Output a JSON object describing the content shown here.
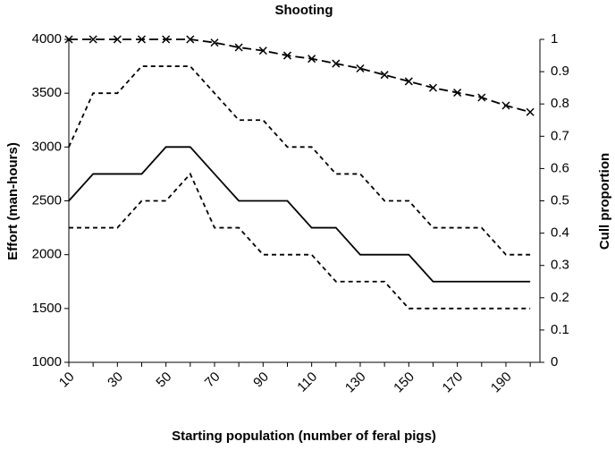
{
  "chart_data": {
    "type": "line",
    "title": "Shooting",
    "xlabel": "Starting population (number of feral pigs)",
    "ylabel": "Effort (man-hours)",
    "y2label": "Cull proportion",
    "categories": [
      "10",
      null,
      "30",
      null,
      "50",
      null,
      "70",
      null,
      "90",
      null,
      "110",
      null,
      "130",
      null,
      "150",
      null,
      "170",
      null,
      "190",
      null
    ],
    "series": [
      {
        "color": "#000000",
        "style": "dashed",
        "values": [
          3000,
          3500,
          3500,
          3750,
          3750,
          3750,
          3500,
          3250,
          3250,
          3000,
          3000,
          2750,
          2750,
          2500,
          2500,
          2250,
          2250,
          2250,
          2000,
          2000
        ]
      },
      {
        "color": "#000000",
        "style": "solid",
        "values": [
          2500,
          2750,
          2750,
          2750,
          3000,
          3000,
          2750,
          2500,
          2500,
          2500,
          2250,
          2250,
          2000,
          2000,
          2000,
          1750,
          1750,
          1750,
          1750,
          1750
        ]
      },
      {
        "color": "#000000",
        "style": "dashed",
        "values": [
          2250,
          2250,
          2250,
          2500,
          2500,
          2750,
          2250,
          2250,
          2000,
          2000,
          2000,
          1750,
          1750,
          1750,
          1500,
          1500,
          1500,
          1500,
          1500,
          1500
        ]
      },
      {
        "color": "#000000",
        "style": "longdash",
        "marker": "x",
        "axis": "y2",
        "values": [
          1,
          1,
          1,
          1,
          1,
          1,
          0.99,
          0.975,
          0.965,
          0.95,
          0.94,
          0.925,
          0.91,
          0.89,
          0.87,
          0.85,
          0.835,
          0.82,
          0.795,
          0.775
        ]
      }
    ],
    "ylim": [
      1000,
      4000
    ],
    "yticks": [
      1000,
      1500,
      2000,
      2500,
      3000,
      3500,
      4000
    ],
    "y2lim": [
      0,
      1
    ],
    "y2ticks": [
      0,
      0.1,
      0.2,
      0.3,
      0.4,
      0.5,
      0.6,
      0.7,
      0.8,
      0.9,
      1
    ]
  }
}
